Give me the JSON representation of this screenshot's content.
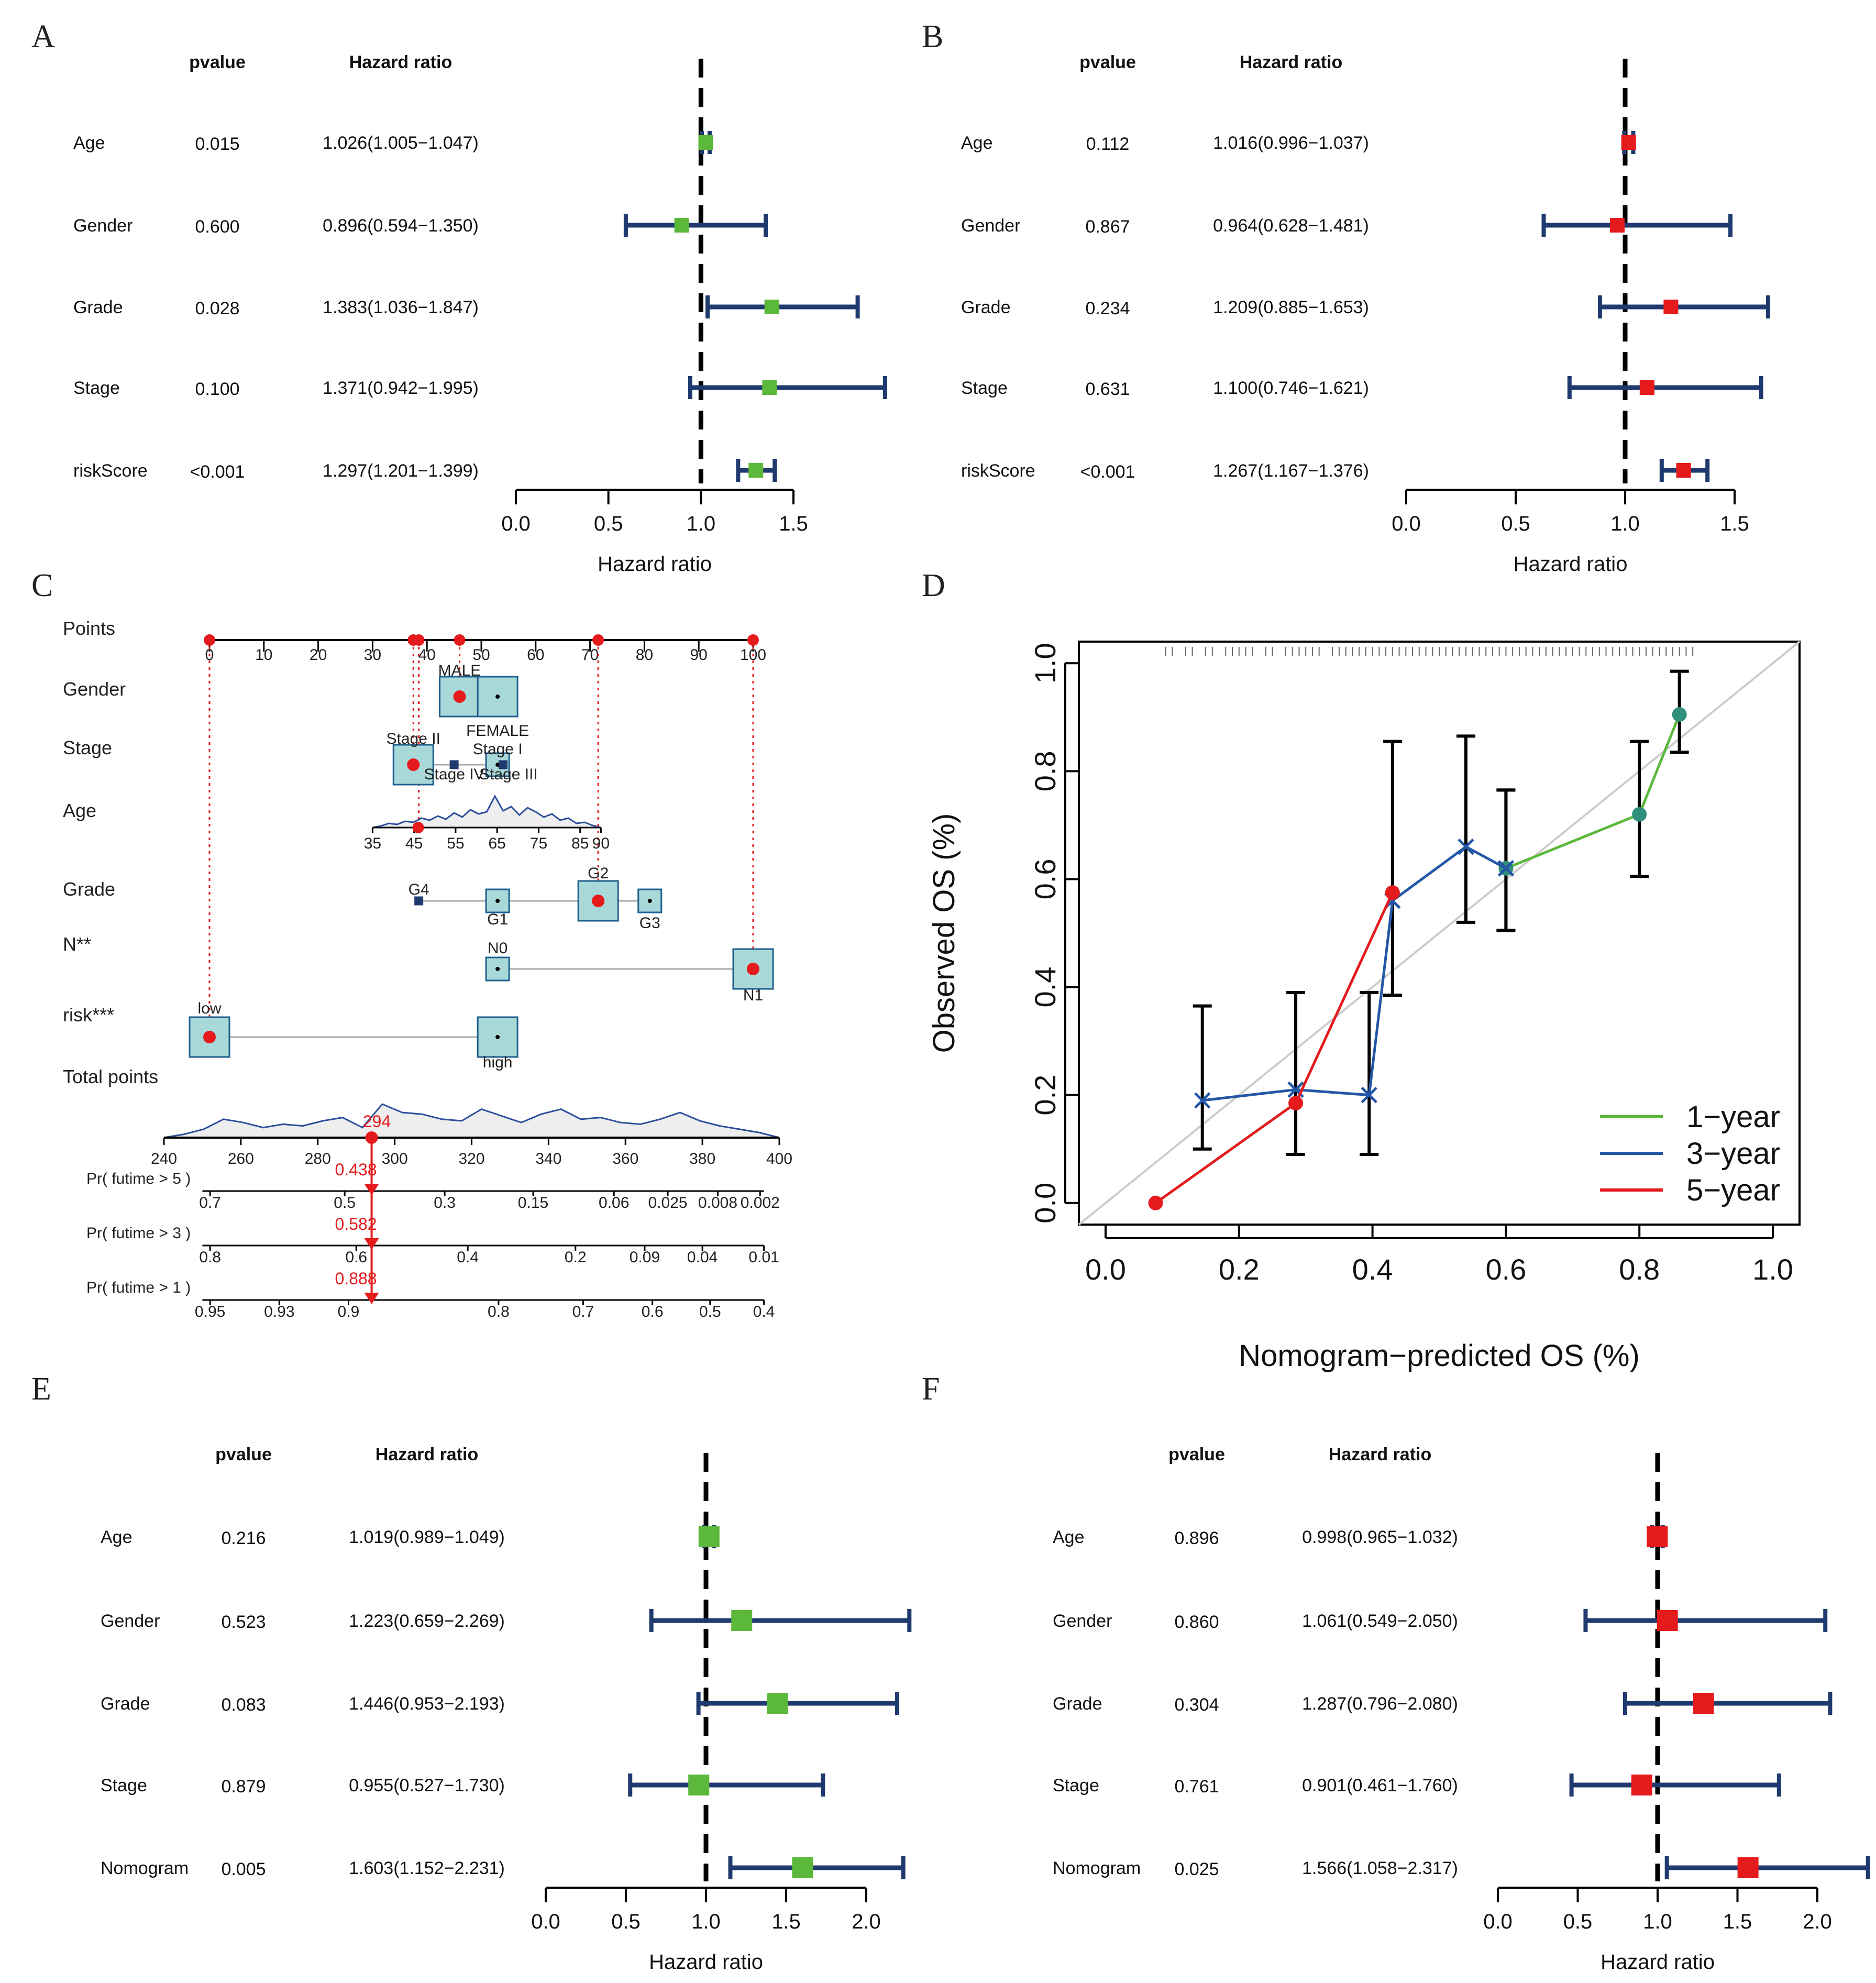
{
  "colors": {
    "green": "#5cb83a",
    "red": "#e41a1c",
    "navy": "#1f3a6e",
    "black": "#111111",
    "box_fill": "#a9d8d8",
    "box_stroke": "#1f5f8f",
    "blue": "#2456a6",
    "gray_diag": "#cccccc"
  },
  "panel_letters": [
    "A",
    "B",
    "C",
    "D",
    "E",
    "F"
  ],
  "forest_header": {
    "pvalue": "pvalue",
    "hr": "Hazard ratio"
  },
  "chart_data": [
    {
      "id": "A",
      "type": "forest",
      "title": "",
      "xlabel": "Hazard ratio",
      "xlim": [
        0,
        1.5
      ],
      "ticks": [
        {
          "v": 0,
          "l": "0.0"
        },
        {
          "v": 0.5,
          "l": "0.5"
        },
        {
          "v": 1,
          "l": "1.0"
        },
        {
          "v": 1.5,
          "l": "1.5"
        }
      ],
      "ref": 1.0,
      "color": "green",
      "box_size": "small",
      "rows": [
        {
          "label": "Age",
          "p": "0.015",
          "hr_text": "1.026(1.005−1.047)",
          "hr": 1.026,
          "lo": 1.005,
          "hi": 1.047
        },
        {
          "label": "Gender",
          "p": "0.600",
          "hr_text": "0.896(0.594−1.350)",
          "hr": 0.896,
          "lo": 0.594,
          "hi": 1.35
        },
        {
          "label": "Grade",
          "p": "0.028",
          "hr_text": "1.383(1.036−1.847)",
          "hr": 1.383,
          "lo": 1.036,
          "hi": 1.847
        },
        {
          "label": "Stage",
          "p": "0.100",
          "hr_text": "1.371(0.942−1.995)",
          "hr": 1.371,
          "lo": 0.942,
          "hi": 1.995
        },
        {
          "label": "riskScore",
          "p": "<0.001",
          "hr_text": "1.297(1.201−1.399)",
          "hr": 1.297,
          "lo": 1.201,
          "hi": 1.399
        }
      ]
    },
    {
      "id": "B",
      "type": "forest",
      "title": "",
      "xlabel": "Hazard ratio",
      "xlim": [
        0,
        1.5
      ],
      "ticks": [
        {
          "v": 0,
          "l": "0.0"
        },
        {
          "v": 0.5,
          "l": "0.5"
        },
        {
          "v": 1,
          "l": "1.0"
        },
        {
          "v": 1.5,
          "l": "1.5"
        }
      ],
      "ref": 1.0,
      "color": "red",
      "box_size": "small",
      "rows": [
        {
          "label": "Age",
          "p": "0.112",
          "hr_text": "1.016(0.996−1.037)",
          "hr": 1.016,
          "lo": 0.996,
          "hi": 1.037
        },
        {
          "label": "Gender",
          "p": "0.867",
          "hr_text": "0.964(0.628−1.481)",
          "hr": 0.964,
          "lo": 0.628,
          "hi": 1.481
        },
        {
          "label": "Grade",
          "p": "0.234",
          "hr_text": "1.209(0.885−1.653)",
          "hr": 1.209,
          "lo": 0.885,
          "hi": 1.653
        },
        {
          "label": "Stage",
          "p": "0.631",
          "hr_text": "1.100(0.746−1.621)",
          "hr": 1.1,
          "lo": 0.746,
          "hi": 1.621
        },
        {
          "label": "riskScore",
          "p": "<0.001",
          "hr_text": "1.267(1.167−1.376)",
          "hr": 1.267,
          "lo": 1.167,
          "hi": 1.376
        }
      ]
    },
    {
      "id": "E",
      "type": "forest",
      "title": "",
      "xlabel": "Hazard ratio",
      "xlim": [
        0,
        2.0
      ],
      "ticks": [
        {
          "v": 0,
          "l": "0.0"
        },
        {
          "v": 0.5,
          "l": "0.5"
        },
        {
          "v": 1,
          "l": "1.0"
        },
        {
          "v": 1.5,
          "l": "1.5"
        },
        {
          "v": 2,
          "l": "2.0"
        }
      ],
      "ref": 1.0,
      "color": "green",
      "box_size": "large",
      "rows": [
        {
          "label": "Age",
          "p": "0.216",
          "hr_text": "1.019(0.989−1.049)",
          "hr": 1.019,
          "lo": 0.989,
          "hi": 1.049
        },
        {
          "label": "Gender",
          "p": "0.523",
          "hr_text": "1.223(0.659−2.269)",
          "hr": 1.223,
          "lo": 0.659,
          "hi": 2.269
        },
        {
          "label": "Grade",
          "p": "0.083",
          "hr_text": "1.446(0.953−2.193)",
          "hr": 1.446,
          "lo": 0.953,
          "hi": 2.193
        },
        {
          "label": "Stage",
          "p": "0.879",
          "hr_text": "0.955(0.527−1.730)",
          "hr": 0.955,
          "lo": 0.527,
          "hi": 1.73
        },
        {
          "label": "Nomogram",
          "p": "0.005",
          "hr_text": "1.603(1.152−2.231)",
          "hr": 1.603,
          "lo": 1.152,
          "hi": 2.231
        }
      ]
    },
    {
      "id": "F",
      "type": "forest",
      "title": "",
      "xlabel": "Hazard ratio",
      "xlim": [
        0,
        2.0
      ],
      "ticks": [
        {
          "v": 0,
          "l": "0.0"
        },
        {
          "v": 0.5,
          "l": "0.5"
        },
        {
          "v": 1,
          "l": "1.0"
        },
        {
          "v": 1.5,
          "l": "1.5"
        },
        {
          "v": 2,
          "l": "2.0"
        }
      ],
      "ref": 1.0,
      "color": "red",
      "box_size": "large",
      "rows": [
        {
          "label": "Age",
          "p": "0.896",
          "hr_text": "0.998(0.965−1.032)",
          "hr": 0.998,
          "lo": 0.965,
          "hi": 1.032
        },
        {
          "label": "Gender",
          "p": "0.860",
          "hr_text": "1.061(0.549−2.050)",
          "hr": 1.061,
          "lo": 0.549,
          "hi": 2.05
        },
        {
          "label": "Grade",
          "p": "0.304",
          "hr_text": "1.287(0.796−2.080)",
          "hr": 1.287,
          "lo": 0.796,
          "hi": 2.08
        },
        {
          "label": "Stage",
          "p": "0.761",
          "hr_text": "0.901(0.461−1.760)",
          "hr": 0.901,
          "lo": 0.461,
          "hi": 1.76
        },
        {
          "label": "Nomogram",
          "p": "0.025",
          "hr_text": "1.566(1.058−2.317)",
          "hr": 1.566,
          "lo": 1.058,
          "hi": 2.317
        }
      ]
    },
    {
      "id": "C",
      "type": "nomogram",
      "points_scale": {
        "label": "Points",
        "min": 0,
        "max": 100,
        "ticks": [
          {
            "v": 0,
            "l": "0"
          },
          {
            "v": 10,
            "l": "10"
          },
          {
            "v": 20,
            "l": "20"
          },
          {
            "v": 30,
            "l": "30"
          },
          {
            "v": 40,
            "l": "40"
          },
          {
            "v": 50,
            "l": "50"
          },
          {
            "v": 60,
            "l": "60"
          },
          {
            "v": 70,
            "l": "70"
          },
          {
            "v": 80,
            "l": "80"
          },
          {
            "v": 90,
            "l": "90"
          },
          {
            "v": 100,
            "l": "100"
          }
        ],
        "selected": [
          0,
          37.5,
          38.5,
          46,
          71.5,
          100
        ]
      },
      "variables": [
        {
          "label": "Gender",
          "levels": [
            {
              "name": "MALE",
              "points": 46,
              "size": "large",
              "selected": true
            },
            {
              "name": "FEMALE",
              "points": 53,
              "size": "large",
              "selected": false
            }
          ]
        },
        {
          "label": "Stage",
          "levels": [
            {
              "name": "Stage II",
              "points": 37.5,
              "size": "large",
              "selected": true
            },
            {
              "name": "Stage IV",
              "points": 45,
              "size": "tiny",
              "selected": false
            },
            {
              "name": "Stage I",
              "points": 53,
              "size": "small",
              "selected": false
            },
            {
              "name": "Stage III",
              "points": 54,
              "size": "tiny",
              "selected": false
            }
          ]
        },
        {
          "label": "Age",
          "axis": {
            "min": 35,
            "max": 90,
            "points_min": 30,
            "points_max": 72,
            "ticks": [
              {
                "v": 35,
                "l": "35"
              },
              {
                "v": 45,
                "l": "45"
              },
              {
                "v": 55,
                "l": "55"
              },
              {
                "v": 65,
                "l": "65"
              },
              {
                "v": 75,
                "l": "75"
              },
              {
                "v": 85,
                "l": "85"
              },
              {
                "v": 90,
                "l": "90"
              }
            ]
          },
          "selected_value": 46
        },
        {
          "label": "Grade",
          "levels": [
            {
              "name": "G4",
              "points": 38.5,
              "size": "tiny",
              "selected": false
            },
            {
              "name": "G1",
              "points": 53,
              "size": "small",
              "selected": false
            },
            {
              "name": "G2",
              "points": 71.5,
              "size": "large",
              "selected": true
            },
            {
              "name": "G3",
              "points": 81,
              "size": "small",
              "selected": false
            }
          ]
        },
        {
          "label": "N**",
          "levels": [
            {
              "name": "N0",
              "points": 53,
              "size": "small",
              "selected": false
            },
            {
              "name": "N1",
              "points": 100,
              "size": "large",
              "selected": true
            }
          ]
        },
        {
          "label": "risk***",
          "levels": [
            {
              "name": "low",
              "points": 0,
              "size": "large",
              "selected": true
            },
            {
              "name": "high",
              "points": 53,
              "size": "large",
              "selected": false
            }
          ]
        }
      ],
      "total_points": {
        "label": "Total points",
        "min": 240,
        "max": 400,
        "ticks": [
          {
            "v": 240,
            "l": "240"
          },
          {
            "v": 260,
            "l": "260"
          },
          {
            "v": 280,
            "l": "280"
          },
          {
            "v": 300,
            "l": "300"
          },
          {
            "v": 320,
            "l": "320"
          },
          {
            "v": 340,
            "l": "340"
          },
          {
            "v": 360,
            "l": "360"
          },
          {
            "v": 380,
            "l": "380"
          },
          {
            "v": 400,
            "l": "400"
          }
        ],
        "selected": 294,
        "selected_label": "294"
      },
      "probabilities": [
        {
          "label": "Pr( futime > 5 )",
          "value_label": "0.438",
          "ticks": [
            {
              "tp": 252,
              "l": "0.7"
            },
            {
              "tp": 287,
              "l": "0.5"
            },
            {
              "tp": 313,
              "l": "0.3"
            },
            {
              "tp": 336,
              "l": "0.15"
            },
            {
              "tp": 357,
              "l": "0.06"
            },
            {
              "tp": 371,
              "l": "0.025"
            },
            {
              "tp": 384,
              "l": "0.008"
            },
            {
              "tp": 395,
              "l": "0.002"
            }
          ]
        },
        {
          "label": "Pr( futime > 3 )",
          "value_label": "0.582",
          "ticks": [
            {
              "tp": 252,
              "l": "0.8"
            },
            {
              "tp": 290,
              "l": "0.6"
            },
            {
              "tp": 319,
              "l": "0.4"
            },
            {
              "tp": 347,
              "l": "0.2"
            },
            {
              "tp": 365,
              "l": "0.09"
            },
            {
              "tp": 380,
              "l": "0.04"
            },
            {
              "tp": 396,
              "l": "0.01"
            }
          ]
        },
        {
          "label": "Pr( futime > 1 )",
          "value_label": "0.888",
          "ticks": [
            {
              "tp": 252,
              "l": "0.95"
            },
            {
              "tp": 270,
              "l": "0.93"
            },
            {
              "tp": 288,
              "l": "0.9"
            },
            {
              "tp": 327,
              "l": "0.8"
            },
            {
              "tp": 349,
              "l": "0.7"
            },
            {
              "tp": 367,
              "l": "0.6"
            },
            {
              "tp": 382,
              "l": "0.5"
            },
            {
              "tp": 396,
              "l": "0.4"
            }
          ]
        }
      ]
    },
    {
      "id": "D",
      "type": "calibration",
      "xlabel": "Nomogram−predicted OS (%)",
      "ylabel": "Observed OS (%)",
      "xlim": [
        -0.04,
        1.04
      ],
      "ylim": [
        -0.04,
        1.04
      ],
      "xticks": [
        {
          "v": 0,
          "l": "0.0"
        },
        {
          "v": 0.2,
          "l": "0.2"
        },
        {
          "v": 0.4,
          "l": "0.4"
        },
        {
          "v": 0.6,
          "l": "0.6"
        },
        {
          "v": 0.8,
          "l": "0.8"
        },
        {
          "v": 1,
          "l": "1.0"
        }
      ],
      "yticks": [
        {
          "v": 0,
          "l": "0.0"
        },
        {
          "v": 0.2,
          "l": "0.2"
        },
        {
          "v": 0.4,
          "l": "0.4"
        },
        {
          "v": 0.6,
          "l": "0.6"
        },
        {
          "v": 0.8,
          "l": "0.8"
        },
        {
          "v": 1,
          "l": "1.0"
        }
      ],
      "series": [
        {
          "name": "1−year",
          "color": "green",
          "x": [
            0.6,
            0.8,
            0.86
          ],
          "y": [
            0.62,
            0.72,
            0.905
          ],
          "ci_lo": [
            0.505,
            0.605,
            0.835
          ],
          "ci_hi": [
            0.765,
            0.855,
            0.985
          ]
        },
        {
          "name": "3−year",
          "color": "blue",
          "x": [
            0.145,
            0.285,
            0.395,
            0.43,
            0.54,
            0.6
          ],
          "y": [
            0.19,
            0.21,
            0.2,
            0.56,
            0.66,
            0.62
          ],
          "ci_lo": [
            0.1,
            0.09,
            0.09,
            0.385,
            0.52,
            0.505
          ],
          "ci_hi": [
            0.365,
            0.39,
            0.39,
            0.855,
            0.865,
            0.765
          ]
        },
        {
          "name": "5−year",
          "color": "red",
          "x": [
            0.075,
            0.285,
            0.43
          ],
          "y": [
            0.0,
            0.185,
            0.575
          ],
          "ci_lo": [],
          "ci_hi": []
        }
      ],
      "rug_x": [
        0.09,
        0.1,
        0.12,
        0.13,
        0.15,
        0.16,
        0.18,
        0.19,
        0.2,
        0.21,
        0.22,
        0.24,
        0.25,
        0.27,
        0.28,
        0.29,
        0.3,
        0.31,
        0.32,
        0.34,
        0.35,
        0.36,
        0.37,
        0.38,
        0.39,
        0.4,
        0.41,
        0.42,
        0.43,
        0.44,
        0.45,
        0.46,
        0.47,
        0.48,
        0.49,
        0.5,
        0.51,
        0.52,
        0.53,
        0.54,
        0.55,
        0.56,
        0.57,
        0.58,
        0.59,
        0.6,
        0.61,
        0.62,
        0.63,
        0.64,
        0.65,
        0.66,
        0.67,
        0.68,
        0.69,
        0.7,
        0.71,
        0.72,
        0.73,
        0.74,
        0.75,
        0.76,
        0.77,
        0.78,
        0.79,
        0.8,
        0.81,
        0.82,
        0.83,
        0.84,
        0.85,
        0.86,
        0.87,
        0.88
      ]
    }
  ]
}
